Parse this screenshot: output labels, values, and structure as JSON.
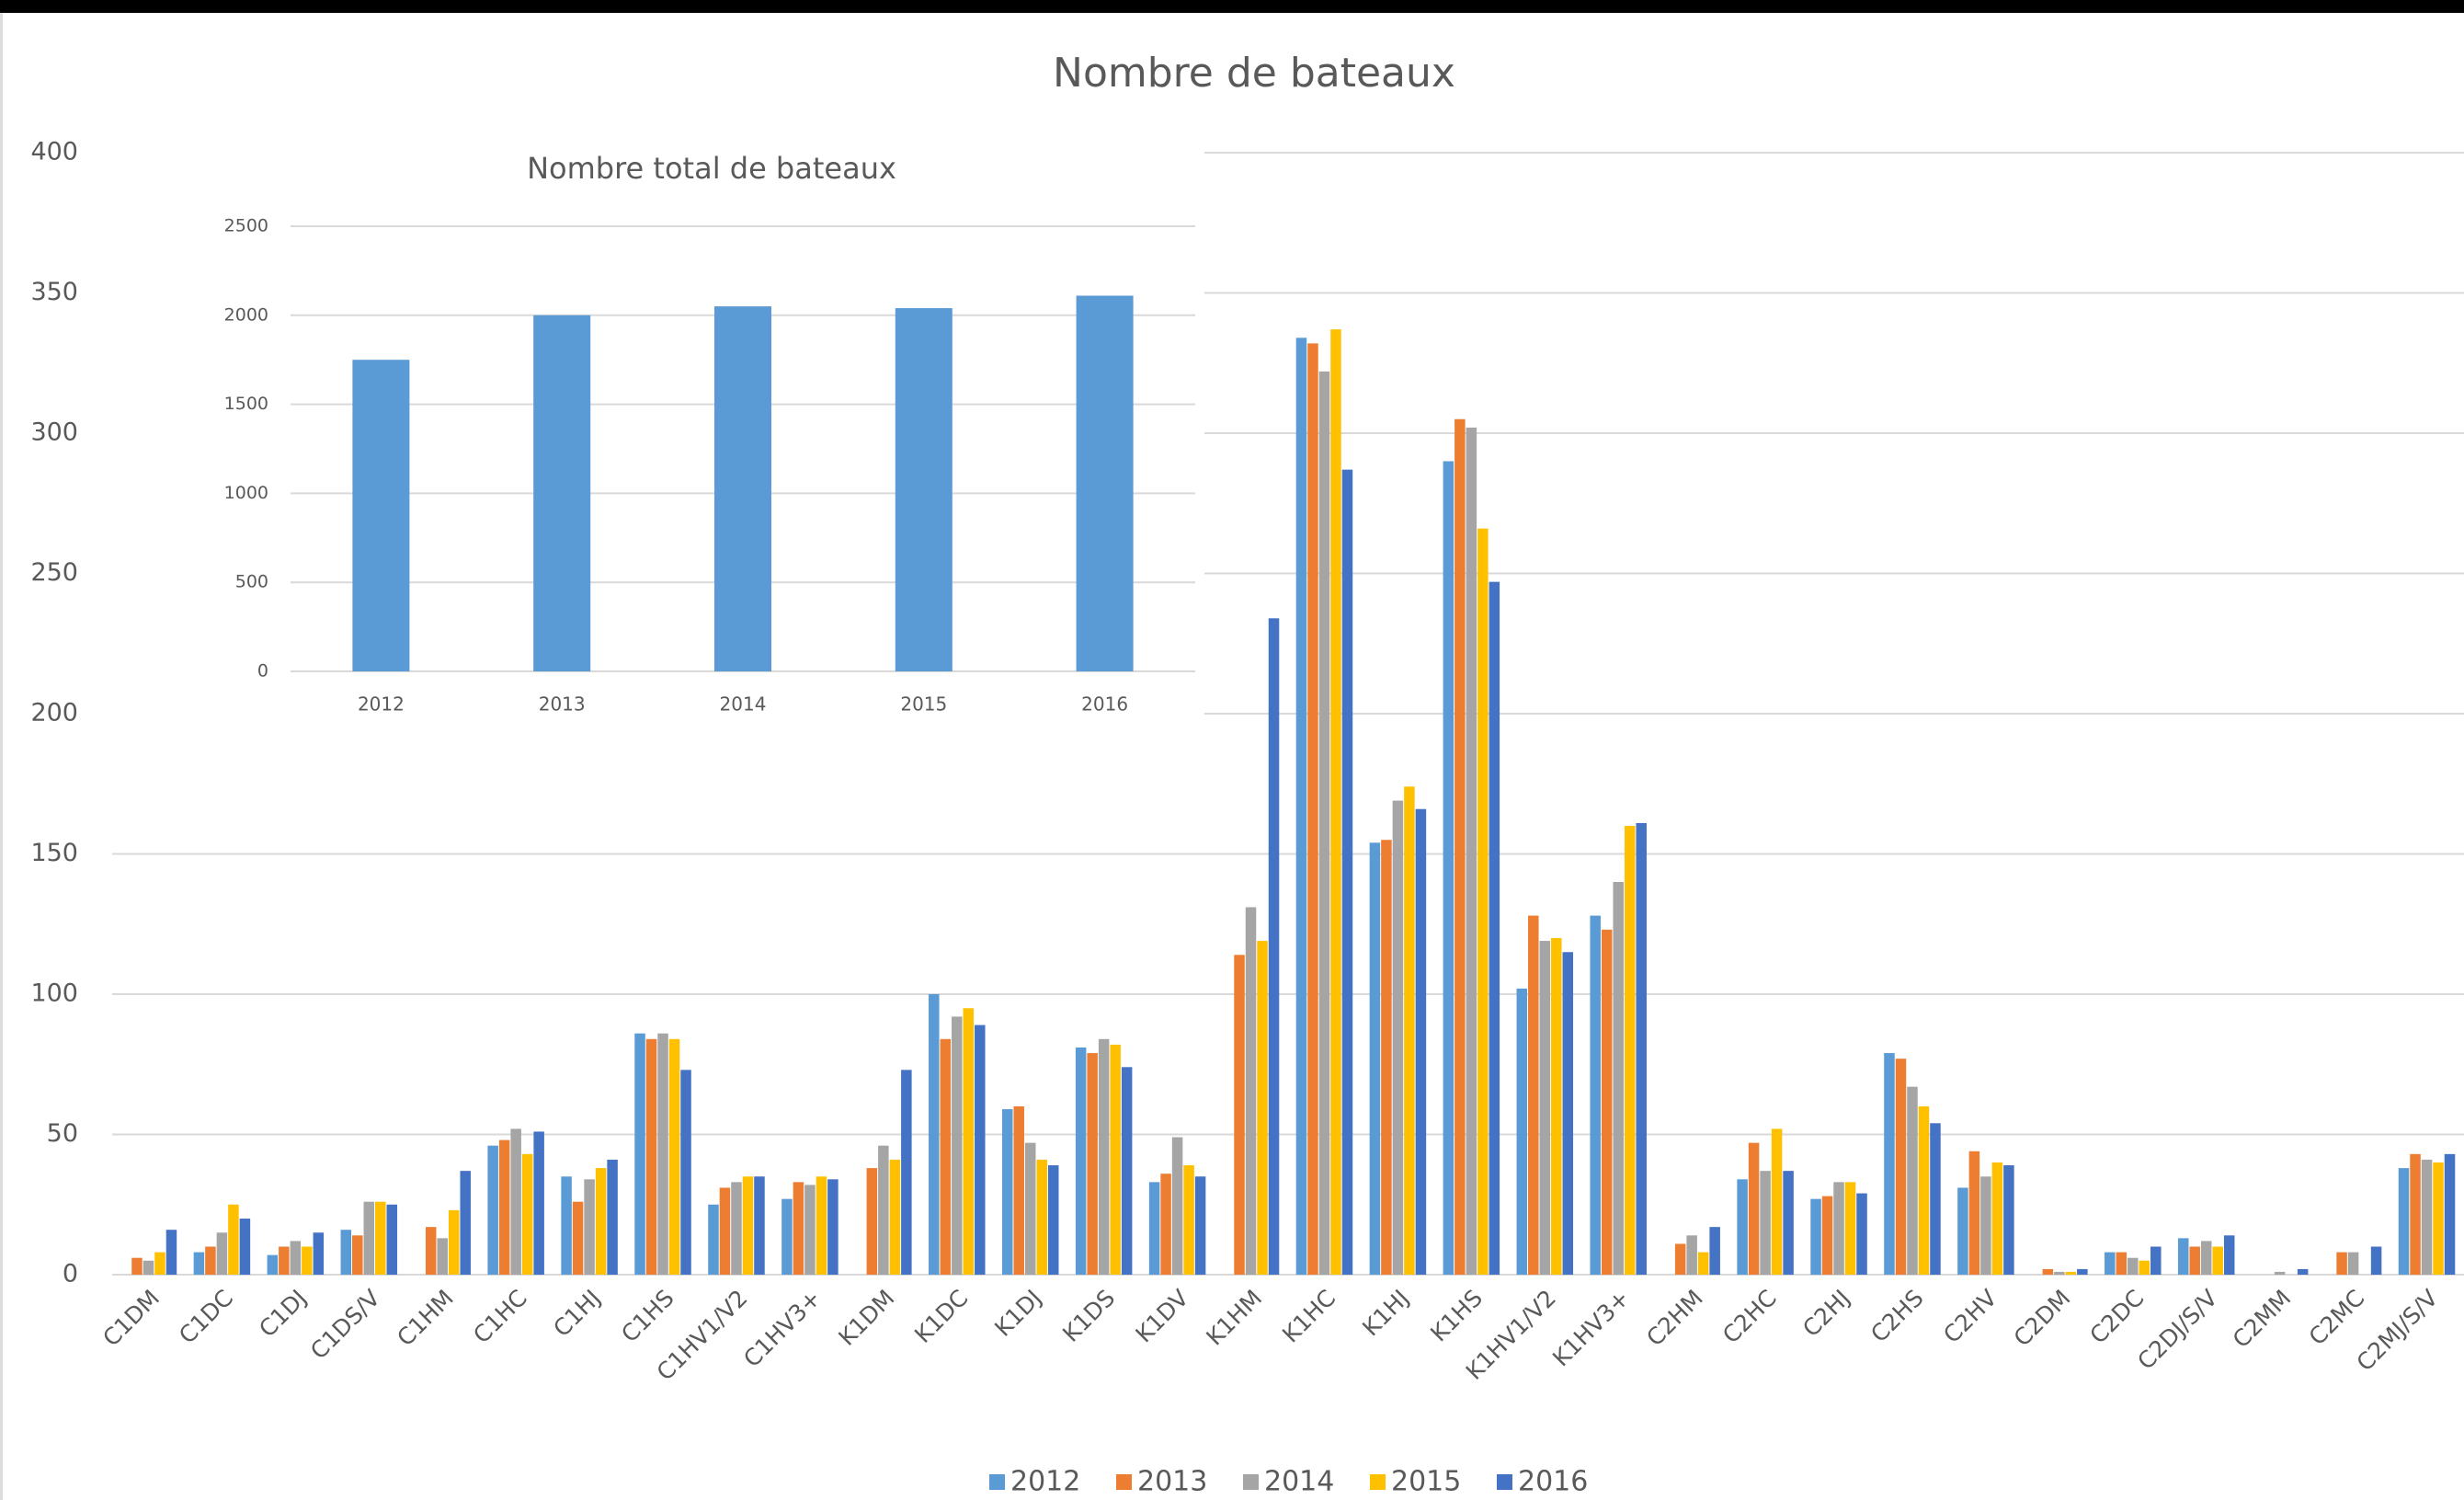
{
  "chart_data": [
    {
      "type": "bar",
      "title": "Nombre de bateaux",
      "categories": [
        "C1DM",
        "C1DC",
        "C1DJ",
        "C1DS/V",
        "C1HM",
        "C1HC",
        "C1HJ",
        "C1HS",
        "C1HV1/V2",
        "C1HV3+",
        "K1DM",
        "K1DC",
        "K1DJ",
        "K1DS",
        "K1DV",
        "K1HM",
        "K1HC",
        "K1HJ",
        "K1HS",
        "K1HV1/V2",
        "K1HV3+",
        "C2HM",
        "C2HC",
        "C2HJ",
        "C2HS",
        "C2HV",
        "C2DM",
        "C2DC",
        "C2DJ/S/V",
        "C2MM",
        "C2MC",
        "C2MJ/S/V"
      ],
      "series": [
        {
          "name": "2012",
          "color": "#5b9bd5",
          "values": [
            0,
            8,
            7,
            16,
            0,
            46,
            35,
            86,
            25,
            27,
            0,
            100,
            59,
            81,
            33,
            0,
            334,
            154,
            290,
            102,
            128,
            0,
            34,
            27,
            79,
            31,
            0,
            8,
            13,
            0,
            0,
            38
          ]
        },
        {
          "name": "2013",
          "color": "#ed7d31",
          "values": [
            6,
            10,
            10,
            14,
            17,
            48,
            26,
            84,
            31,
            33,
            38,
            84,
            60,
            79,
            36,
            114,
            332,
            155,
            305,
            128,
            123,
            11,
            47,
            28,
            77,
            44,
            2,
            8,
            10,
            0,
            8,
            43
          ]
        },
        {
          "name": "2014",
          "color": "#a5a5a5",
          "values": [
            5,
            15,
            12,
            26,
            13,
            52,
            34,
            86,
            33,
            32,
            46,
            92,
            47,
            84,
            49,
            131,
            322,
            169,
            302,
            119,
            140,
            14,
            37,
            33,
            67,
            35,
            1,
            6,
            12,
            1,
            8,
            41
          ]
        },
        {
          "name": "2015",
          "color": "#ffc000",
          "values": [
            8,
            25,
            10,
            26,
            23,
            43,
            38,
            84,
            35,
            35,
            41,
            95,
            41,
            82,
            39,
            119,
            337,
            174,
            266,
            120,
            160,
            8,
            52,
            33,
            60,
            40,
            1,
            5,
            10,
            0,
            0,
            40
          ]
        },
        {
          "name": "2016",
          "color": "#4472c4",
          "values": [
            16,
            20,
            15,
            25,
            37,
            51,
            41,
            73,
            35,
            34,
            73,
            89,
            39,
            74,
            35,
            234,
            287,
            166,
            247,
            115,
            161,
            17,
            37,
            29,
            54,
            39,
            2,
            10,
            14,
            2,
            10,
            43
          ]
        }
      ],
      "ylim": [
        0,
        400
      ],
      "yticks": [
        0,
        50,
        100,
        150,
        200,
        250,
        300,
        350,
        400
      ],
      "grid": true,
      "legend": "bottom"
    },
    {
      "type": "bar",
      "title": "Nombre total de bateaux",
      "categories": [
        "2012",
        "2013",
        "2014",
        "2015",
        "2016"
      ],
      "values": [
        1750,
        2000,
        2050,
        2040,
        2110
      ],
      "color": "#5b9bd5",
      "ylim": [
        0,
        2500
      ],
      "yticks": [
        0,
        500,
        1000,
        1500,
        2000,
        2500
      ],
      "grid": true
    }
  ]
}
